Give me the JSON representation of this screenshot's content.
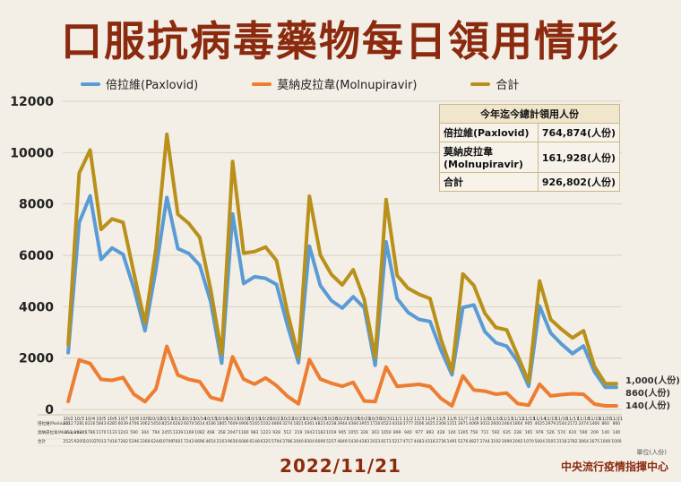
{
  "title": "口服抗病毒藥物每日領用情形",
  "legend": [
    {
      "label": "倍拉維(Paxlovid)",
      "color": "#5b9bd5"
    },
    {
      "label": "莫納皮拉韋(Molnupiravir)",
      "color": "#ed7d31"
    },
    {
      "label": "合計",
      "color": "#b8901a"
    }
  ],
  "totals_table": {
    "header": "今年迄今總計領用人份",
    "rows": [
      {
        "label": "倍拉維(Paxlovid)",
        "value": "764,874(人份)"
      },
      {
        "label": "莫納皮拉韋(Molnupiravir)",
        "value": "161,928(人份)"
      },
      {
        "label": "合計",
        "value": "926,802(人份)"
      }
    ]
  },
  "end_labels": [
    "1,000(人份)",
    "860(人份)",
    "140(人份)"
  ],
  "date": "2022/11/21",
  "source": "中央流行疫情指揮中心",
  "unit_note": "單位(人份)",
  "chart_data": {
    "type": "line",
    "xlabel": "",
    "ylabel": "",
    "ylim": [
      0,
      12000
    ],
    "yticks": [
      0,
      2000,
      4000,
      6000,
      8000,
      10000,
      12000
    ],
    "grid": true,
    "legend_position": "top",
    "table_row_labels": [
      "倍拉維(Paxlovid)",
      "莫納皮拉韋(Molnupiravir)",
      "合計"
    ],
    "x": [
      "10/2",
      "10/3",
      "10/4",
      "10/5",
      "10/6",
      "10/7",
      "10/8",
      "10/9",
      "10/10",
      "10/11",
      "10/12",
      "10/13",
      "10/14",
      "10/15",
      "10/16",
      "10/17",
      "10/18",
      "10/19",
      "10/20",
      "10/21",
      "10/22",
      "10/23",
      "10/24",
      "10/25",
      "10/26",
      "10/27",
      "10/28",
      "10/29",
      "10/30",
      "10/31",
      "11/1",
      "11/2",
      "11/3",
      "11/4",
      "11/5",
      "11/6",
      "11/7",
      "11/8",
      "11/9",
      "11/10",
      "11/11",
      "11/12",
      "11/13",
      "11/14",
      "11/15",
      "11/16",
      "11/17",
      "11/18",
      "11/19",
      "11/20",
      "11/21"
    ],
    "series": [
      {
        "name": "倍拉維(Paxlovid)",
        "color": "#5b9bd5",
        "values": [
          2212,
          7281,
          8316,
          5843,
          6285,
          6039,
          4706,
          3062,
          5450,
          8254,
          6262,
          6074,
          5614,
          4186,
          1805,
          7609,
          4906,
          5165,
          5102,
          4866,
          3274,
          1821,
          6361,
          4823,
          4238,
          3944,
          4384,
          3955,
          1720,
          6523,
          4318,
          3777,
          3506,
          3425,
          2308,
          1351,
          3971,
          4069,
          3033,
          2600,
          2464,
          1864,
          905,
          4025,
          2979,
          2544,
          2172,
          2474,
          1466,
          860,
          860
        ]
      },
      {
        "name": "莫納皮拉韋(Molnupiravir)",
        "color": "#ed7d31",
        "values": [
          313,
          1924,
          1786,
          1170,
          1133,
          1243,
          590,
          304,
          794,
          2455,
          1339,
          1169,
          1082,
          468,
          358,
          2047,
          1180,
          983,
          1223,
          928,
          512,
          219,
          1943,
          1183,
          1019,
          905,
          1055,
          328,
          303,
          1650,
          899,
          940,
          977,
          893,
          428,
          140,
          1305,
          758,
          711,
          592,
          635,
          228,
          165,
          979,
          526,
          574,
          610,
          590,
          209,
          140,
          140
        ]
      },
      {
        "name": "合計",
        "color": "#b8901a",
        "values": [
          2525,
          9205,
          10102,
          7013,
          7418,
          7282,
          5296,
          3366,
          6244,
          10709,
          7601,
          7243,
          6696,
          4654,
          2163,
          9656,
          6086,
          6148,
          6325,
          5794,
          3786,
          2040,
          8304,
          6006,
          5257,
          4849,
          5439,
          4283,
          2023,
          8173,
          5217,
          4717,
          4483,
          4318,
          2736,
          1491,
          5276,
          4827,
          3744,
          3192,
          3099,
          2092,
          1070,
          5004,
          3505,
          3118,
          2782,
          3064,
          1675,
          1000,
          1000
        ]
      }
    ]
  }
}
